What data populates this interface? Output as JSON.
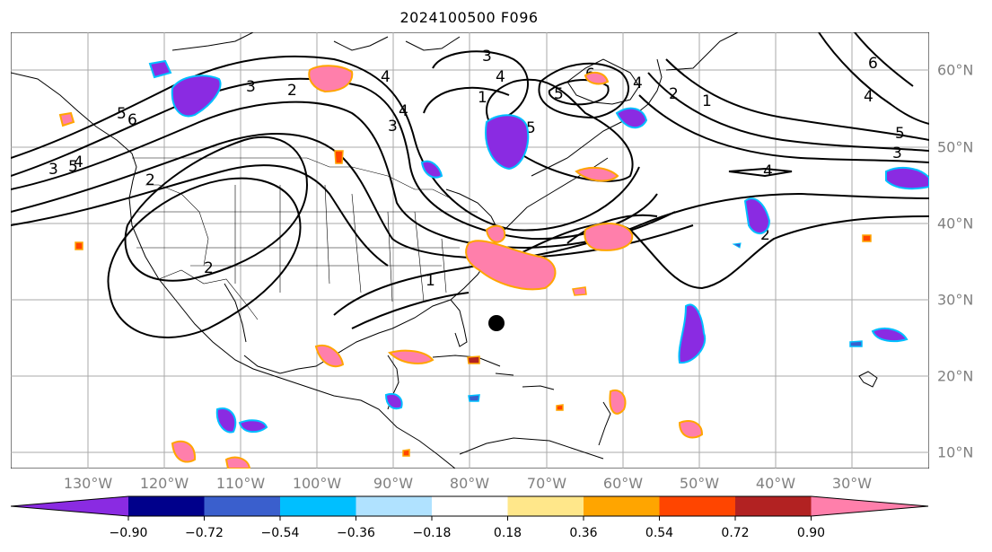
{
  "title": "2024100500 F096",
  "lon_labels": [
    "130°W",
    "120°W",
    "110°W",
    "100°W",
    "90°W",
    "80°W",
    "70°W",
    "60°W",
    "50°W",
    "40°W",
    "30°W"
  ],
  "lat_labels": [
    "60°N",
    "50°N",
    "40°N",
    "30°N",
    "20°N",
    "10°N"
  ],
  "contour_labels": [
    "3",
    "4",
    "5",
    "6",
    "2",
    "1",
    "4",
    "6",
    "5",
    "4",
    "5",
    "3",
    "2",
    "1",
    "5",
    "4",
    "3",
    "6",
    "3",
    "4",
    "2",
    "4",
    "5",
    "6",
    "2",
    "1",
    "4",
    "2",
    "3"
  ],
  "colorbar": {
    "ticks": [
      "−0.90",
      "−0.72",
      "−0.54",
      "−0.36",
      "−0.18",
      "0.18",
      "0.36",
      "0.54",
      "0.72",
      "0.90"
    ],
    "colors": [
      "#8a2be2",
      "#00008b",
      "#3a5fcd",
      "#00bfff",
      "#b0e2ff",
      "#ffffff",
      "#ffe78a",
      "#ffa500",
      "#ff4500",
      "#b22222",
      "#ff7fab"
    ]
  },
  "colors": {
    "purple": "#8a2be2",
    "navy": "#00008b",
    "blue": "#3a5fcd",
    "cyan": "#00bfff",
    "lightblue": "#b0e2ff",
    "yellow": "#ffe78a",
    "orange": "#ffa500",
    "redorange": "#ff4500",
    "darkred": "#b22222",
    "pink": "#ff7fab"
  }
}
